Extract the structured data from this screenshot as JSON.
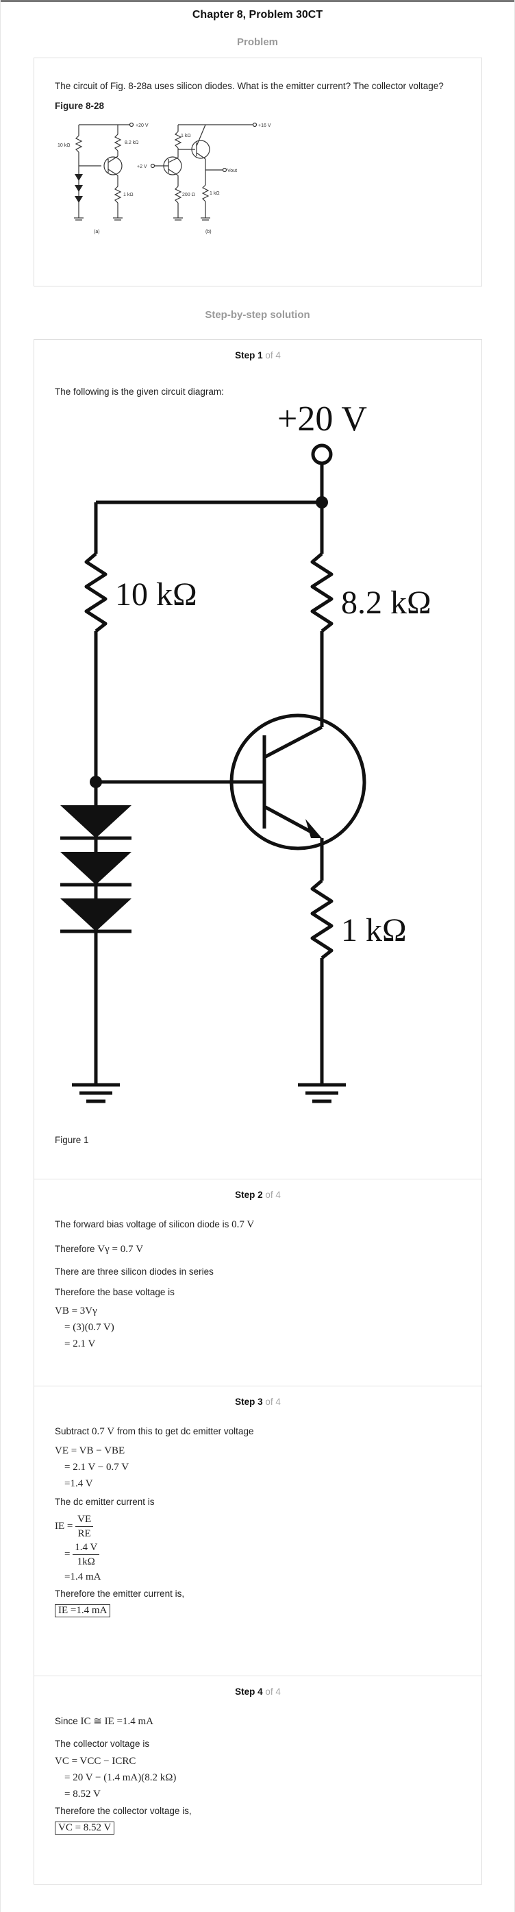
{
  "title": "Chapter 8, Problem 30CT",
  "problem": {
    "heading": "Problem",
    "text": "The circuit of Fig. 8-28a uses silicon diodes. What is the emitter current? The collector voltage?",
    "figure_label": "Figure 8-28",
    "thumb": {
      "labels": [
        "+20 V",
        "10 kΩ",
        "8.2 kΩ",
        "1 kΩ",
        "(a)",
        "+16 V",
        "1 kΩ",
        "+2 V",
        "200 Ω",
        "1 kΩ",
        "Vout",
        "(b)"
      ]
    }
  },
  "solution": {
    "heading": "Step-by-step solution"
  },
  "steps": [
    {
      "num": "Step 1",
      "of": " of 4",
      "intro": "The following is the given circuit diagram:",
      "fig_labels": {
        "supply": "+20 V",
        "r1": "10 kΩ",
        "rc": "8.2 kΩ",
        "re": "1 kΩ"
      },
      "caption": "Figure 1"
    },
    {
      "num": "Step 2",
      "of": " of 4",
      "l1": "The forward bias voltage of silicon diode is",
      "l1m": "0.7 V",
      "l2": "Therefore",
      "l2m": "Vγ = 0.7 V",
      "l3": "There are three silicon diodes in series",
      "l4": "Therefore the base voltage is",
      "m1": "VB = 3Vγ",
      "m2": "= (3)(0.7 V)",
      "m3": "= 2.1 V"
    },
    {
      "num": "Step 3",
      "of": " of 4",
      "l1a": "Subtract",
      "l1m": "0.7 V",
      "l1b": "from this to get dc emitter voltage",
      "m1": "VE = VB − VBE",
      "m2": "= 2.1 V − 0.7 V",
      "m3": "=1.4 V",
      "l2": "The dc emitter current is",
      "m4a": "IE =",
      "m4n": "VE",
      "m4d": "RE",
      "m5n": "1.4 V",
      "m5d": "1kΩ",
      "m6": "=1.4 mA",
      "l3": "Therefore the emitter current is,",
      "ans": "IE =1.4 mA"
    },
    {
      "num": "Step 4",
      "of": " of 4",
      "l1a": "Since",
      "l1m": "IC ≅ IE =1.4 mA",
      "l2": "The collector voltage is",
      "m1": "VC = VCC − ICRC",
      "m2": "= 20 V − (1.4 mA)(8.2 kΩ)",
      "m3": "= 8.52 V",
      "l3": "Therefore the collector voltage is,",
      "ans": "VC = 8.52 V"
    }
  ]
}
